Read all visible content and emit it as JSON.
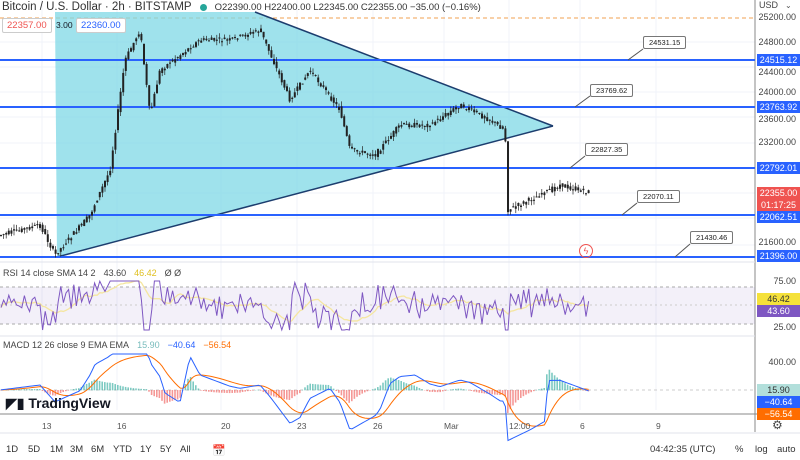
{
  "header": {
    "title": "Bitcoin / U.S. Dollar · 2h · BITSTAMP",
    "ohlc": "O22390.00 H22400.00 L22345.00 C22355.00 −35.00 (−0.16%)",
    "sell_price": "22357.00",
    "spread": "3.00",
    "buy_price": "22360.00",
    "status_color": "#26a69a"
  },
  "price_axis": {
    "currency": "USD",
    "ticks": [
      "25200.00",
      "24800.00",
      "24400.00",
      "24000.00",
      "23600.00",
      "23200.00",
      "21600.00"
    ],
    "levels": [
      "24515.12",
      "23763.92",
      "22792.01",
      "22062.51",
      "21396.00"
    ],
    "last_price": "22355.00",
    "countdown": "01:17:25"
  },
  "callouts": [
    "24531.15",
    "23769.62",
    "22827.35",
    "22070.11",
    "21430.46"
  ],
  "rsi": {
    "label": "RSI 14 close SMA 14 2",
    "value": "43.60",
    "sma": "46.42",
    "extra": "Ø Ø",
    "ticks": [
      "75.00",
      "25.00"
    ],
    "value_tag": "43.60",
    "sma_tag": "46.42"
  },
  "macd": {
    "label": "MACD 12 26 close 9 EMA EMA",
    "hist": "15.90",
    "macd": "−40.64",
    "signal": "−56.54",
    "tick": "400.00",
    "hist_tag": "15.90",
    "macd_tag": "−40.64",
    "signal_tag": "−56.54"
  },
  "time_axis": [
    "13",
    "16",
    "20",
    "23",
    "26",
    "Mar",
    "12:00",
    "6",
    "9"
  ],
  "bottom": {
    "ranges": [
      "1D",
      "5D",
      "1M",
      "3M",
      "6M",
      "YTD",
      "1Y",
      "5Y",
      "All"
    ],
    "clock": "04:42:35 (UTC)",
    "percent": "%",
    "log": "log",
    "auto": "auto"
  },
  "logo": "TradingView",
  "colors": {
    "up": "#26a69a",
    "down": "#ef5350",
    "level": "#2962ff",
    "triangle": "#7fd8e6",
    "rsi": "#7e57c2",
    "macd": "#2962ff",
    "signal": "#ff6d00"
  }
}
